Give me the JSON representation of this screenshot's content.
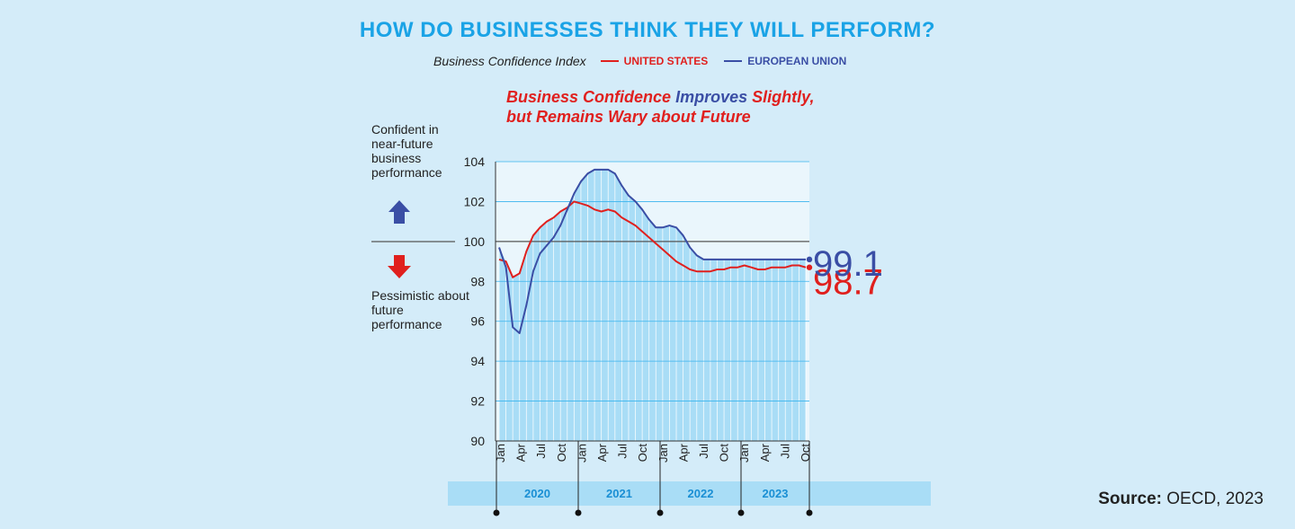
{
  "title": "HOW DO BUSINESSES THINK THEY WILL PERFORM?",
  "legend": {
    "index_label": "Business Confidence Index",
    "items": [
      {
        "name": "UNITED STATES",
        "color": "#e0201e"
      },
      {
        "name": "EUROPEAN UNION",
        "color": "#3a4ea5"
      }
    ]
  },
  "subtitle": {
    "part1": "Business Confidence",
    "part2": "Improves",
    "part3": "Slightly,",
    "line2": "but Remains Wary about Future"
  },
  "side_labels": {
    "confident": "Confident in near-future business performance",
    "pessimistic": "Pessimistic about future performance"
  },
  "source": {
    "label": "Source:",
    "text": "OECD, 2023"
  },
  "chart_data": {
    "type": "line",
    "ylim": [
      90,
      104
    ],
    "yticks": [
      90,
      92,
      94,
      96,
      98,
      100,
      102,
      104
    ],
    "reference_line": 100,
    "x_tick_labels": [
      "Jan",
      "Apr",
      "Jul",
      "Oct",
      "Jan",
      "Apr",
      "Jul",
      "Oct",
      "Jan",
      "Apr",
      "Jul",
      "Oct",
      "Jan",
      "Apr",
      "Jul",
      "Oct"
    ],
    "years": [
      "2020",
      "2021",
      "2022",
      "2023"
    ],
    "months_count": 46,
    "series": [
      {
        "name": "UNITED STATES",
        "color": "#e0201e",
        "end_label": "98.7",
        "values": [
          99.1,
          99.0,
          98.2,
          98.4,
          99.5,
          100.3,
          100.7,
          101.0,
          101.2,
          101.5,
          101.7,
          102.0,
          101.9,
          101.8,
          101.6,
          101.5,
          101.6,
          101.5,
          101.2,
          101.0,
          100.8,
          100.5,
          100.2,
          99.9,
          99.6,
          99.3,
          99.0,
          98.8,
          98.6,
          98.5,
          98.5,
          98.5,
          98.6,
          98.6,
          98.7,
          98.7,
          98.8,
          98.7,
          98.6,
          98.6,
          98.7,
          98.7,
          98.7,
          98.8,
          98.8,
          98.7
        ]
      },
      {
        "name": "EUROPEAN UNION",
        "color": "#3a4ea5",
        "end_label": "99.1",
        "values": [
          99.7,
          98.7,
          95.7,
          95.4,
          96.8,
          98.5,
          99.4,
          99.8,
          100.2,
          100.8,
          101.6,
          102.4,
          103.0,
          103.4,
          103.6,
          103.6,
          103.6,
          103.4,
          102.8,
          102.3,
          102.0,
          101.6,
          101.1,
          100.7,
          100.7,
          100.8,
          100.7,
          100.3,
          99.7,
          99.3,
          99.1,
          99.1,
          99.1,
          99.1,
          99.1,
          99.1,
          99.1,
          99.1,
          99.1,
          99.1,
          99.1,
          99.1,
          99.1,
          99.1,
          99.1,
          99.1
        ]
      }
    ]
  }
}
